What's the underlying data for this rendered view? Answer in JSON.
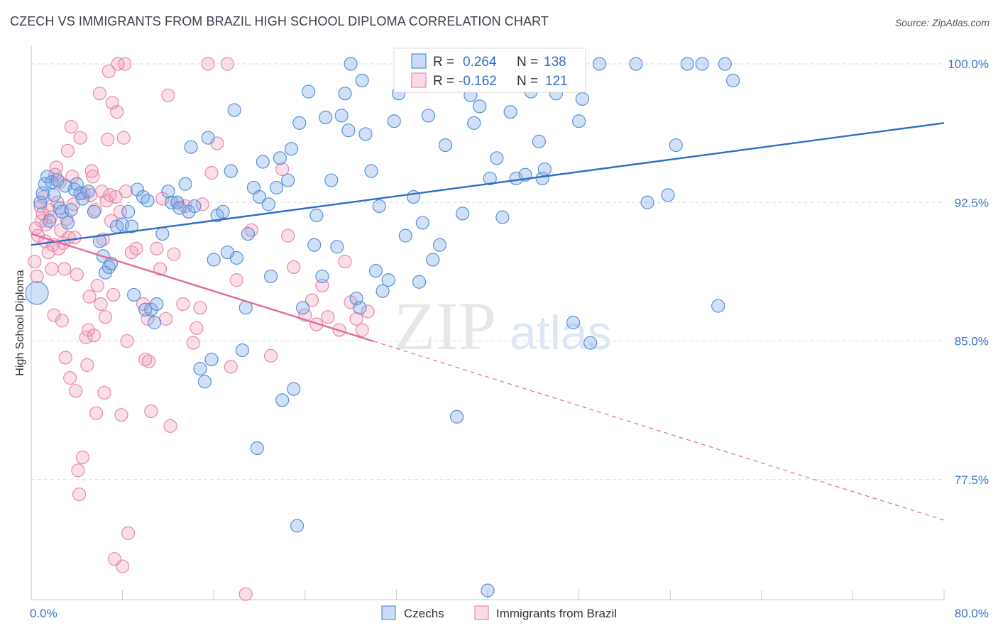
{
  "title": "CZECH VS IMMIGRANTS FROM BRAZIL HIGH SCHOOL DIPLOMA CORRELATION CHART",
  "source": "Source: ZipAtlas.com",
  "watermark": {
    "zip": "ZIP",
    "atlas": "atlas"
  },
  "colors": {
    "blue": "#5b8fd9",
    "blue_fill": "rgba(120,165,230,0.35)",
    "blue_line": "#2f6cc4",
    "pink": "#e888a8",
    "pink_fill": "rgba(240,150,180,0.30)",
    "pink_line": "#e06c95",
    "grid": "#d9d9d9",
    "tick_text": "#3a74c9"
  },
  "stats": {
    "czechs": {
      "r_label": "R =",
      "r": "0.264",
      "n_label": "N =",
      "n": "138"
    },
    "brazil": {
      "r_label": "R =",
      "r": "-0.162",
      "n_label": "N =",
      "n": "121"
    }
  },
  "chart_data": {
    "type": "scatter",
    "title": "CZECH VS IMMIGRANTS FROM BRAZIL HIGH SCHOOL DIPLOMA CORRELATION CHART",
    "xlabel": "",
    "ylabel": "High School Diploma",
    "xlim": [
      0,
      80
    ],
    "ylim": [
      71.0,
      101.0
    ],
    "x_tick_labels": [
      "0.0%",
      "80.0%"
    ],
    "y_ticks": [
      77.5,
      85.0,
      92.5,
      100.0
    ],
    "y_tick_labels": [
      "77.5%",
      "85.0%",
      "92.5%",
      "100.0%"
    ],
    "legend": [
      "Czechs",
      "Immigrants from Brazil"
    ],
    "series": [
      {
        "name": "Czechs",
        "trend": {
          "x": [
            0,
            80
          ],
          "y": [
            90.2,
            96.8
          ],
          "solid_to": 80
        },
        "points": [
          [
            0.5,
            87.6
          ],
          [
            0.8,
            92.5
          ],
          [
            1.0,
            93.0
          ],
          [
            1.2,
            93.5
          ],
          [
            1.4,
            93.9
          ],
          [
            1.6,
            91.5
          ],
          [
            1.8,
            93.6
          ],
          [
            2.0,
            92.9
          ],
          [
            2.3,
            93.7
          ],
          [
            2.5,
            92.2
          ],
          [
            2.7,
            92.0
          ],
          [
            3.0,
            93.4
          ],
          [
            3.2,
            91.4
          ],
          [
            3.5,
            92.1
          ],
          [
            3.8,
            93.2
          ],
          [
            4.0,
            93.5
          ],
          [
            4.3,
            93.0
          ],
          [
            4.5,
            92.7
          ],
          [
            5.0,
            93.1
          ],
          [
            5.5,
            92.0
          ],
          [
            6.0,
            90.4
          ],
          [
            6.3,
            89.6
          ],
          [
            6.5,
            88.7
          ],
          [
            6.8,
            89.0
          ],
          [
            7.0,
            89.2
          ],
          [
            7.5,
            91.2
          ],
          [
            8.0,
            91.3
          ],
          [
            8.5,
            92.0
          ],
          [
            8.8,
            91.2
          ],
          [
            9.0,
            87.5
          ],
          [
            9.3,
            93.2
          ],
          [
            9.8,
            92.8
          ],
          [
            10.0,
            86.7
          ],
          [
            10.2,
            92.6
          ],
          [
            10.5,
            86.7
          ],
          [
            10.8,
            86.0
          ],
          [
            11.0,
            87.0
          ],
          [
            11.5,
            90.8
          ],
          [
            12.0,
            93.1
          ],
          [
            12.3,
            92.5
          ],
          [
            12.8,
            92.5
          ],
          [
            13.0,
            92.2
          ],
          [
            13.5,
            93.5
          ],
          [
            13.8,
            92.0
          ],
          [
            14.0,
            95.5
          ],
          [
            14.3,
            92.3
          ],
          [
            14.8,
            83.5
          ],
          [
            15.2,
            82.8
          ],
          [
            15.5,
            96.0
          ],
          [
            15.8,
            84.0
          ],
          [
            16.0,
            89.4
          ],
          [
            16.3,
            91.8
          ],
          [
            16.8,
            92.0
          ],
          [
            17.2,
            89.8
          ],
          [
            17.5,
            94.2
          ],
          [
            17.8,
            97.5
          ],
          [
            18.0,
            89.5
          ],
          [
            18.5,
            84.5
          ],
          [
            18.8,
            86.8
          ],
          [
            19.0,
            90.8
          ],
          [
            19.5,
            93.3
          ],
          [
            19.8,
            79.2
          ],
          [
            20.0,
            92.8
          ],
          [
            20.3,
            94.7
          ],
          [
            20.8,
            92.4
          ],
          [
            21.0,
            88.5
          ],
          [
            21.5,
            93.3
          ],
          [
            21.8,
            94.9
          ],
          [
            22.0,
            81.8
          ],
          [
            22.5,
            93.7
          ],
          [
            22.8,
            95.4
          ],
          [
            23.0,
            82.4
          ],
          [
            23.3,
            75.0
          ],
          [
            23.5,
            96.8
          ],
          [
            23.8,
            86.8
          ],
          [
            24.3,
            98.5
          ],
          [
            24.8,
            90.2
          ],
          [
            25.0,
            91.8
          ],
          [
            25.5,
            88.5
          ],
          [
            25.8,
            97.1
          ],
          [
            26.3,
            93.7
          ],
          [
            26.8,
            90.1
          ],
          [
            27.2,
            97.2
          ],
          [
            27.5,
            98.4
          ],
          [
            27.8,
            96.4
          ],
          [
            28.0,
            100.0
          ],
          [
            28.5,
            87.3
          ],
          [
            28.8,
            86.8
          ],
          [
            29.0,
            99.1
          ],
          [
            29.3,
            96.2
          ],
          [
            29.8,
            94.2
          ],
          [
            30.2,
            88.8
          ],
          [
            30.5,
            92.3
          ],
          [
            30.8,
            87.7
          ],
          [
            31.3,
            88.3
          ],
          [
            31.8,
            96.9
          ],
          [
            32.2,
            98.4
          ],
          [
            32.8,
            90.7
          ],
          [
            33.5,
            92.8
          ],
          [
            34.0,
            88.2
          ],
          [
            34.3,
            91.4
          ],
          [
            34.8,
            97.2
          ],
          [
            35.2,
            89.4
          ],
          [
            35.8,
            90.2
          ],
          [
            36.3,
            95.6
          ],
          [
            37.0,
            99.8
          ],
          [
            37.3,
            80.9
          ],
          [
            37.8,
            91.9
          ],
          [
            38.5,
            98.3
          ],
          [
            38.8,
            96.8
          ],
          [
            39.3,
            97.7
          ],
          [
            40.0,
            71.5
          ],
          [
            40.2,
            93.8
          ],
          [
            40.8,
            94.9
          ],
          [
            41.3,
            91.7
          ],
          [
            42.0,
            97.4
          ],
          [
            42.5,
            93.8
          ],
          [
            43.3,
            94.0
          ],
          [
            43.8,
            98.5
          ],
          [
            44.5,
            95.8
          ],
          [
            44.8,
            93.8
          ],
          [
            45.0,
            94.3
          ],
          [
            45.3,
            99.8
          ],
          [
            46.0,
            98.4
          ],
          [
            47.5,
            86.0
          ],
          [
            48.0,
            96.9
          ],
          [
            48.3,
            98.1
          ],
          [
            49.0,
            84.9
          ],
          [
            49.8,
            100.0
          ],
          [
            53.0,
            100.0
          ],
          [
            54.0,
            92.5
          ],
          [
            55.8,
            92.9
          ],
          [
            56.5,
            95.6
          ],
          [
            57.5,
            100.0
          ],
          [
            58.8,
            100.0
          ],
          [
            60.2,
            86.9
          ],
          [
            60.8,
            100.0
          ],
          [
            61.5,
            99.1
          ]
        ]
      },
      {
        "name": "Immigrants from Brazil",
        "trend": {
          "x": [
            0,
            80
          ],
          "y": [
            90.8,
            75.3
          ],
          "solid_to": 30
        },
        "points": [
          [
            0.3,
            89.3
          ],
          [
            0.4,
            91.1
          ],
          [
            0.5,
            88.5
          ],
          [
            0.6,
            90.7
          ],
          [
            0.8,
            92.3
          ],
          [
            0.9,
            91.5
          ],
          [
            1.0,
            91.9
          ],
          [
            1.1,
            92.8
          ],
          [
            1.2,
            90.4
          ],
          [
            1.3,
            91.3
          ],
          [
            1.5,
            89.8
          ],
          [
            1.6,
            92.1
          ],
          [
            1.7,
            91.7
          ],
          [
            1.8,
            88.9
          ],
          [
            1.9,
            90.2
          ],
          [
            2.0,
            86.4
          ],
          [
            2.1,
            94.0
          ],
          [
            2.2,
            94.4
          ],
          [
            2.3,
            92.5
          ],
          [
            2.4,
            90.0
          ],
          [
            2.5,
            93.6
          ],
          [
            2.6,
            91.0
          ],
          [
            2.7,
            86.1
          ],
          [
            2.8,
            90.3
          ],
          [
            2.9,
            88.9
          ],
          [
            3.0,
            84.1
          ],
          [
            3.1,
            91.6
          ],
          [
            3.2,
            95.3
          ],
          [
            3.3,
            90.6
          ],
          [
            3.4,
            83.0
          ],
          [
            3.5,
            96.6
          ],
          [
            3.6,
            93.9
          ],
          [
            3.7,
            92.4
          ],
          [
            3.8,
            90.6
          ],
          [
            3.9,
            82.3
          ],
          [
            4.0,
            88.6
          ],
          [
            4.1,
            78.0
          ],
          [
            4.2,
            76.7
          ],
          [
            4.3,
            96.0
          ],
          [
            4.5,
            78.7
          ],
          [
            4.6,
            93.0
          ],
          [
            4.8,
            85.2
          ],
          [
            4.9,
            83.7
          ],
          [
            5.0,
            85.6
          ],
          [
            5.1,
            87.4
          ],
          [
            5.2,
            92.9
          ],
          [
            5.3,
            94.2
          ],
          [
            5.4,
            93.9
          ],
          [
            5.5,
            85.3
          ],
          [
            5.6,
            92.1
          ],
          [
            5.7,
            81.1
          ],
          [
            5.8,
            88.0
          ],
          [
            6.0,
            98.4
          ],
          [
            6.1,
            87.0
          ],
          [
            6.2,
            93.1
          ],
          [
            6.3,
            90.5
          ],
          [
            6.4,
            82.2
          ],
          [
            6.5,
            86.3
          ],
          [
            6.6,
            92.6
          ],
          [
            6.7,
            95.9
          ],
          [
            6.8,
            99.6
          ],
          [
            6.9,
            92.9
          ],
          [
            7.0,
            91.5
          ],
          [
            7.1,
            97.9
          ],
          [
            7.2,
            87.5
          ],
          [
            7.3,
            73.2
          ],
          [
            7.4,
            92.8
          ],
          [
            7.5,
            97.4
          ],
          [
            7.6,
            100.0
          ],
          [
            7.8,
            92.0
          ],
          [
            7.9,
            81.0
          ],
          [
            8.0,
            72.8
          ],
          [
            8.1,
            96.0
          ],
          [
            8.2,
            100.0
          ],
          [
            8.3,
            93.1
          ],
          [
            8.4,
            85.0
          ],
          [
            8.5,
            74.6
          ],
          [
            8.8,
            89.8
          ],
          [
            9.2,
            90.0
          ],
          [
            9.8,
            87.0
          ],
          [
            10.0,
            84.0
          ],
          [
            10.2,
            86.2
          ],
          [
            10.3,
            83.9
          ],
          [
            10.5,
            81.2
          ],
          [
            11.0,
            90.0
          ],
          [
            11.3,
            88.9
          ],
          [
            11.5,
            92.7
          ],
          [
            11.8,
            86.2
          ],
          [
            12.0,
            98.3
          ],
          [
            12.2,
            80.4
          ],
          [
            12.5,
            89.7
          ],
          [
            12.8,
            92.5
          ],
          [
            13.3,
            87.0
          ],
          [
            13.5,
            92.3
          ],
          [
            14.2,
            84.9
          ],
          [
            14.5,
            85.7
          ],
          [
            14.8,
            86.8
          ],
          [
            15.0,
            92.4
          ],
          [
            15.5,
            100.0
          ],
          [
            15.8,
            94.1
          ],
          [
            16.3,
            95.7
          ],
          [
            17.2,
            100.0
          ],
          [
            17.5,
            83.6
          ],
          [
            18.0,
            88.3
          ],
          [
            18.8,
            71.3
          ],
          [
            19.3,
            91.0
          ],
          [
            21.0,
            84.2
          ],
          [
            22.0,
            94.3
          ],
          [
            22.5,
            90.7
          ],
          [
            23.0,
            89.0
          ],
          [
            24.0,
            86.4
          ],
          [
            24.6,
            87.2
          ],
          [
            25.0,
            85.9
          ],
          [
            25.5,
            88.0
          ],
          [
            26.0,
            86.3
          ],
          [
            27.0,
            85.6
          ],
          [
            27.5,
            89.3
          ],
          [
            28.0,
            87.1
          ],
          [
            28.5,
            86.2
          ],
          [
            29.0,
            85.6
          ],
          [
            29.5,
            86.6
          ]
        ]
      }
    ]
  }
}
